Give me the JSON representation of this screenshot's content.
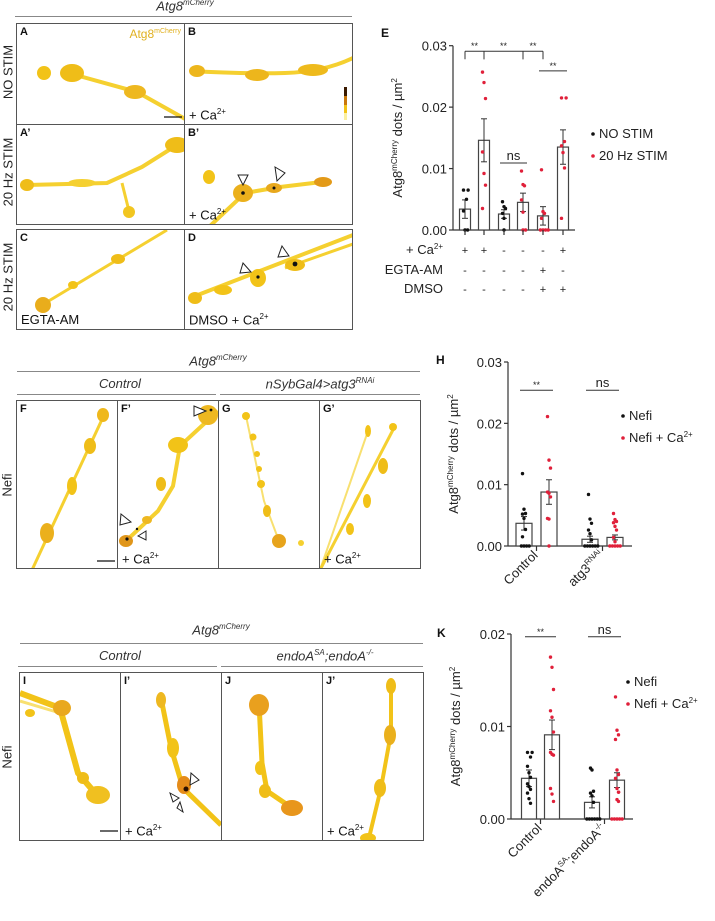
{
  "colors": {
    "black_points": "#111111",
    "red_points": "#e0203a",
    "signal": "#f2c318",
    "signal_dark": "#d88a10"
  },
  "top": {
    "header": {
      "base": "Atg8",
      "sup": "mCherry"
    },
    "row_labels": [
      "NO STIM",
      "20 Hz STIM",
      "20 Hz STIM"
    ],
    "panels": {
      "A": {
        "label": "A",
        "stain": {
          "base": "Atg8",
          "sup": "mCherry"
        }
      },
      "B": {
        "label": "B",
        "caption": {
          "base": "+ Ca",
          "sup": "2+"
        }
      },
      "A2": {
        "label": "A’"
      },
      "B2": {
        "label": "B’",
        "caption": {
          "base": "+ Ca",
          "sup": "2+"
        }
      },
      "C": {
        "label": "C",
        "caption": {
          "base": "EGTA-AM",
          "sup": ""
        }
      },
      "D": {
        "label": "D",
        "caption": {
          "base": "DMSO + Ca",
          "sup": "2+"
        }
      }
    }
  },
  "middle": {
    "header": {
      "base": "Atg8",
      "sup": "mCherry"
    },
    "groups": [
      {
        "base": "Control",
        "sup": ""
      },
      {
        "base": "nSybGal4>atg3",
        "sup": "RNAi"
      }
    ],
    "row_label": "Nefi",
    "panels": {
      "F": {
        "label": "F"
      },
      "F2": {
        "label": "F’",
        "caption": {
          "base": "+ Ca",
          "sup": "2+"
        }
      },
      "G": {
        "label": "G"
      },
      "G2": {
        "label": "G’",
        "caption": {
          "base": "+ Ca",
          "sup": "2+"
        }
      }
    }
  },
  "bottom": {
    "header": {
      "base": "Atg8",
      "sup": "mCherry"
    },
    "groups": [
      {
        "base": "Control",
        "sup": ""
      },
      {
        "base": "endoA",
        "sup": "SA",
        "rest": ";endoA",
        "sup2": "-/-"
      }
    ],
    "row_label": "Nefi",
    "panels": {
      "I": {
        "label": "I"
      },
      "I2": {
        "label": "I’",
        "caption": {
          "base": "+ Ca",
          "sup": "2+"
        }
      },
      "J": {
        "label": "J"
      },
      "J2": {
        "label": "J’",
        "caption": {
          "base": "+ Ca",
          "sup": "2+"
        }
      }
    }
  },
  "chart_data": [
    {
      "panel": "E",
      "type": "bar",
      "ylabel": {
        "base": "Atg8",
        "sup": "mCherry",
        "rest": " dots / µm",
        "sup2": "2"
      },
      "ylim": [
        0,
        0.03
      ],
      "yticks": [
        "0.00",
        "0.01",
        "0.02",
        "0.03"
      ],
      "ytick_values": [
        0,
        0.01,
        0.02,
        0.03
      ],
      "legend": {
        "placement": "right",
        "entries": [
          {
            "label": "NO STIM",
            "series": "black"
          },
          {
            "label": "20 Hz STIM",
            "series": "red"
          }
        ]
      },
      "bars": [
        {
          "series": "black",
          "mean": 0.0034,
          "sem": 0.0015,
          "points": [
            0.0065,
            0.0065,
            0.005,
            0.0031,
            0,
            0
          ]
        },
        {
          "series": "red",
          "mean": 0.0146,
          "sem": 0.0035,
          "points": [
            0.0257,
            0.024,
            0.0214,
            0.0127,
            0.0092,
            0.0073,
            0.0035
          ]
        },
        {
          "series": "black",
          "mean": 0.0026,
          "sem": 0.0007,
          "points": [
            0.0046,
            0.0038,
            0.0035,
            0.0027,
            0.0019,
            0
          ]
        },
        {
          "series": "red",
          "mean": 0.0045,
          "sem": 0.0015,
          "points": [
            0.0096,
            0.0074,
            0.0072,
            0.0049,
            0.0029,
            0,
            0
          ]
        },
        {
          "series": "red",
          "mean": 0.0023,
          "sem": 0.0015,
          "points": [
            0.0098,
            0.003,
            0.0027,
            0.0019,
            0,
            0,
            0,
            0
          ]
        },
        {
          "series": "red",
          "mean": 0.0135,
          "sem": 0.0028,
          "points": [
            0.0215,
            0.0215,
            0.0144,
            0.0137,
            0.0126,
            0.0101,
            0.0019
          ]
        }
      ],
      "conditions": [
        {
          "label": "+ Ca",
          "sup": "2+",
          "values": [
            "+",
            "+",
            "-",
            "-",
            "-",
            "+"
          ]
        },
        {
          "label": "EGTA-AM",
          "sup": "",
          "values": [
            "-",
            "-",
            "-",
            "-",
            "+",
            "-"
          ]
        },
        {
          "label": "DMSO",
          "sup": "",
          "values": [
            "-",
            "-",
            "-",
            "-",
            "+",
            "+"
          ]
        }
      ],
      "comparisons": [
        {
          "label": "**",
          "from": 0,
          "to": 1,
          "y": 0.0291,
          "ticks": true
        },
        {
          "label": "**",
          "from": 1,
          "to": 3,
          "y": 0.0291,
          "ticks": true
        },
        {
          "label": "**",
          "from": 3,
          "to": 4,
          "y": 0.0291,
          "ticks": true
        },
        {
          "label": "**",
          "from": 4,
          "to": 5,
          "y": 0.0259,
          "ticks": false
        },
        {
          "label": "ns",
          "from": 2,
          "to": 3,
          "y": 0.0109,
          "ticks": false
        }
      ]
    },
    {
      "panel": "H",
      "type": "bar",
      "ylabel": {
        "base": "Atg8",
        "sup": "mCherry",
        "rest": " dots / µm",
        "sup2": "2"
      },
      "ylim": [
        0,
        0.03
      ],
      "yticks": [
        "0.00",
        "0.01",
        "0.02",
        "0.03"
      ],
      "ytick_values": [
        0,
        0.01,
        0.02,
        0.03
      ],
      "categories": [
        {
          "base": "Control",
          "sup": ""
        },
        {
          "base": "atg3",
          "sup": "RNAi"
        }
      ],
      "legend": {
        "placement": "right",
        "entries": [
          {
            "label": "Nefi",
            "sup": "",
            "series": "black"
          },
          {
            "label": "Nefi + Ca",
            "sup": "2+",
            "series": "red"
          }
        ]
      },
      "bars": [
        {
          "series": "black",
          "mean": 0.0037,
          "sem": 0.0011,
          "points": [
            0.0118,
            0.006,
            0.0053,
            0.0052,
            0.0045,
            0.0027,
            0.0015,
            0,
            0,
            0,
            0
          ]
        },
        {
          "series": "red",
          "mean": 0.0088,
          "sem": 0.002,
          "points": [
            0.0211,
            0.014,
            0.0127,
            0.0088,
            0.0086,
            0.008,
            0.0045,
            0.0044,
            0
          ]
        },
        {
          "series": "black",
          "mean": 0.0011,
          "sem": 0.0005,
          "points": [
            0.0084,
            0.0044,
            0.0037,
            0.0026,
            0.002,
            0.001,
            0,
            0,
            0,
            0,
            0,
            0
          ]
        },
        {
          "series": "red",
          "mean": 0.0014,
          "sem": 0.0004,
          "points": [
            0.0053,
            0.0043,
            0.004,
            0.0038,
            0.0032,
            0.0026,
            0.0014,
            0.0007,
            0,
            0,
            0,
            0,
            0
          ]
        }
      ],
      "comparisons": [
        {
          "label": "**",
          "from": 0,
          "to": 1,
          "y": 0.0254,
          "ticks": false
        },
        {
          "label": "ns",
          "from": 2,
          "to": 3,
          "y": 0.0254,
          "ticks": false
        }
      ]
    },
    {
      "panel": "K",
      "type": "bar",
      "ylabel": {
        "base": "Atg8",
        "sup": "mCherry",
        "rest": " dots / µm",
        "sup2": "2"
      },
      "ylim": [
        0,
        0.02
      ],
      "yticks": [
        "0.00",
        "0.01",
        "0.02"
      ],
      "ytick_values": [
        0,
        0.01,
        0.02
      ],
      "categories": [
        {
          "base": "Control",
          "sup": ""
        },
        {
          "base": "endoA",
          "sup": "SA",
          "rest": ";endoA",
          "sup2": "-/-"
        }
      ],
      "legend": {
        "placement": "right",
        "entries": [
          {
            "label": "Nefi",
            "sup": "",
            "series": "black"
          },
          {
            "label": "Nefi + Ca",
            "sup": "2+",
            "series": "red"
          }
        ]
      },
      "bars": [
        {
          "series": "black",
          "mean": 0.0044,
          "sem": 0.0009,
          "points": [
            0.0072,
            0.0072,
            0.0067,
            0.0057,
            0.005,
            0.0045,
            0.0038,
            0.0035,
            0.0032,
            0.0028,
            0.0022,
            0.0017
          ]
        },
        {
          "series": "red",
          "mean": 0.0091,
          "sem": 0.0016,
          "points": [
            0.0175,
            0.0164,
            0.014,
            0.0117,
            0.011,
            0.0094,
            0.0072,
            0.007,
            0.0069,
            0.0033,
            0.0027,
            0.0019
          ]
        },
        {
          "series": "black",
          "mean": 0.0018,
          "sem": 0.0006,
          "points": [
            0.0055,
            0.0053,
            0.003,
            0.0028,
            0.0025,
            0.0018,
            0,
            0,
            0,
            0,
            0,
            0
          ]
        },
        {
          "series": "red",
          "mean": 0.0042,
          "sem": 0.0008,
          "points": [
            0.0132,
            0.0096,
            0.0091,
            0.0086,
            0.0053,
            0.0048,
            0.0044,
            0.0033,
            0.0029,
            0.0029,
            0.0021,
            0.0019,
            0,
            0,
            0,
            0,
            0
          ]
        }
      ],
      "comparisons": [
        {
          "label": "**",
          "from": 0,
          "to": 1,
          "y": 0.0197,
          "ticks": false
        },
        {
          "label": "ns",
          "from": 2,
          "to": 3,
          "y": 0.0197,
          "ticks": false
        }
      ]
    }
  ]
}
